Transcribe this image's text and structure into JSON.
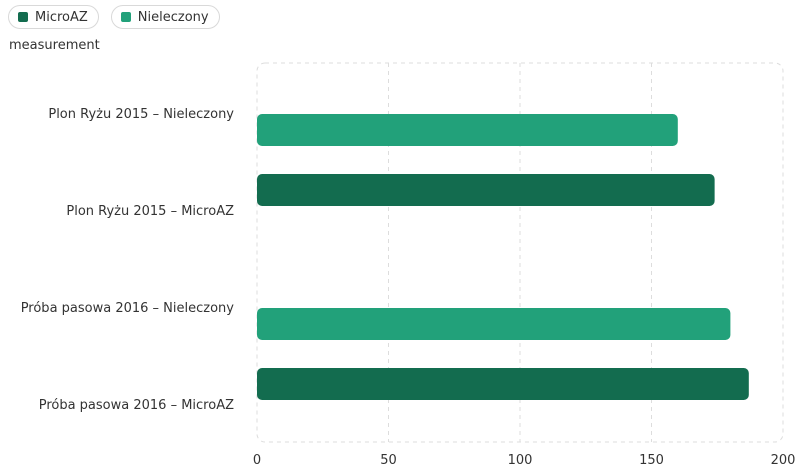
{
  "legend": [
    {
      "label": "MicroAZ",
      "color": "#136c4f"
    },
    {
      "label": "Nieleczony",
      "color": "#22a17a"
    }
  ],
  "unit_label": "measurement",
  "chart_data": {
    "type": "bar",
    "orientation": "horizontal",
    "categories": [
      "Plon Ryżu 2015 – Nieleczony",
      "Plon Ryżu 2015 – MicroAZ",
      "Próba pasowa 2016 – Nieleczony",
      "Próba pasowa 2016 – MicroAZ"
    ],
    "values": [
      160,
      174,
      180,
      187
    ],
    "bar_series": [
      "Nieleczony",
      "MicroAZ",
      "Nieleczony",
      "MicroAZ"
    ],
    "xlim": [
      0,
      200
    ],
    "xticks": [
      0,
      50,
      100,
      150,
      200
    ],
    "grid": true,
    "legend_position": "top-left"
  }
}
